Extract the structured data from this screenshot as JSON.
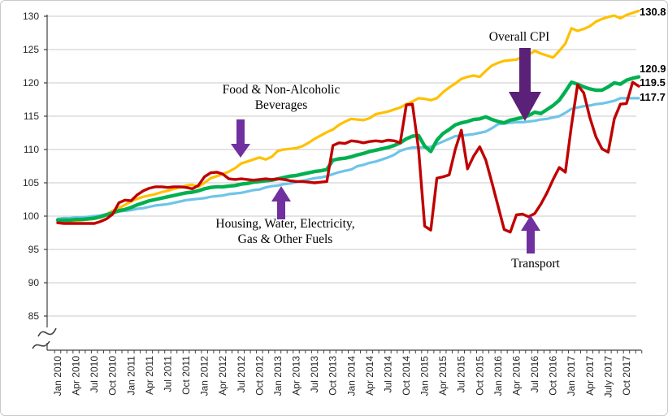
{
  "chart_data": {
    "type": "line",
    "title": "",
    "x": {
      "start": "Jan 2010",
      "end": "Dec 2017",
      "frequency": "monthly",
      "tick_labels": [
        "Jan 2010",
        "Apr 2010",
        "Jul 2010",
        "Oct 2010",
        "Jan 2011",
        "Apr 2011",
        "Jul 2011",
        "Oct 2011",
        "Jan 2012",
        "Apr 2012",
        "Jul 2012",
        "Oct 2012",
        "Jan 2013",
        "Apr 2013",
        "Jul 2013",
        "Oct 2013",
        "Jan 2014",
        "Apr 2014",
        "Jul 2014",
        "Oct 2014",
        "Jan 2015",
        "Apr 2015",
        "Jul 2015",
        "Oct 2015",
        "Jan 2016",
        "Apr 2016",
        "Jul 2016",
        "Oct 2016",
        "Jan 2017",
        "Apr 2017",
        "July 2017",
        "Oct 2017"
      ]
    },
    "y": {
      "ticks": [
        85,
        90,
        95,
        100,
        105,
        110,
        115,
        120,
        125,
        130
      ],
      "axis_break_below": 85
    },
    "grid": "horizontal",
    "legend": "none-annotated-arrows",
    "colors": {
      "grid": "#c9c9c9",
      "axis": "#404040",
      "arrow_large": "#5B2077",
      "arrow_small": "#7030A0"
    },
    "series": [
      {
        "name": "Food & Non-Alcoholic Beverages",
        "color": "#FFC000",
        "end_label": "130.8",
        "values": [
          99.3,
          99.3,
          99.2,
          99.3,
          99.4,
          99.5,
          99.6,
          99.8,
          100.3,
          100.8,
          101.2,
          101.7,
          102.2,
          102.6,
          102.9,
          103.1,
          103.3,
          103.6,
          103.8,
          104.1,
          104.3,
          104.6,
          104.7,
          104.4,
          105.0,
          105.7,
          106.0,
          106.3,
          106.7,
          107.2,
          107.9,
          108.2,
          108.5,
          108.8,
          108.5,
          108.9,
          109.8,
          110.0,
          110.1,
          110.2,
          110.5,
          111.0,
          111.6,
          112.1,
          112.6,
          113.0,
          113.7,
          114.2,
          114.6,
          114.5,
          114.4,
          114.7,
          115.3,
          115.5,
          115.7,
          116.0,
          116.3,
          116.8,
          117.2,
          117.7,
          117.6,
          117.4,
          117.7,
          118.6,
          119.3,
          119.9,
          120.6,
          120.9,
          121.1,
          120.9,
          121.8,
          122.6,
          123.0,
          123.3,
          123.4,
          123.5,
          123.9,
          124.2,
          124.8,
          124.4,
          124.1,
          123.8,
          124.8,
          125.9,
          128.2,
          127.8,
          128.1,
          128.5,
          129.2,
          129.6,
          129.9,
          130.1,
          129.7,
          130.2,
          130.5,
          130.8
        ]
      },
      {
        "name": "Overall CPI",
        "color": "#00B050",
        "end_label": "120.9",
        "values": [
          99.4,
          99.4,
          99.4,
          99.5,
          99.5,
          99.6,
          99.7,
          99.9,
          100.2,
          100.5,
          100.8,
          101.0,
          101.3,
          101.7,
          102.0,
          102.3,
          102.5,
          102.7,
          102.9,
          103.1,
          103.3,
          103.5,
          103.6,
          103.8,
          104.1,
          104.3,
          104.4,
          104.4,
          104.5,
          104.6,
          104.8,
          104.9,
          105.1,
          105.2,
          105.3,
          105.4,
          105.6,
          105.8,
          106.0,
          106.1,
          106.3,
          106.5,
          106.7,
          106.8,
          107.0,
          108.4,
          108.6,
          108.7,
          108.9,
          109.2,
          109.4,
          109.7,
          109.9,
          110.1,
          110.3,
          110.6,
          111.0,
          111.6,
          112.0,
          112.1,
          110.5,
          109.7,
          111.4,
          112.4,
          113.0,
          113.7,
          114.0,
          114.2,
          114.5,
          114.6,
          114.9,
          114.5,
          114.2,
          114.0,
          114.4,
          114.6,
          114.8,
          115.1,
          115.6,
          115.4,
          116.0,
          116.6,
          117.4,
          118.7,
          120.1,
          119.8,
          119.4,
          119.1,
          118.9,
          118.9,
          119.4,
          120.0,
          119.8,
          120.4,
          120.7,
          120.9
        ]
      },
      {
        "name": "Transport",
        "color": "#C00000",
        "end_label": "119.5",
        "values": [
          99.0,
          98.9,
          98.9,
          98.9,
          98.9,
          98.9,
          98.9,
          99.2,
          99.6,
          100.3,
          102.0,
          102.4,
          102.3,
          103.2,
          103.8,
          104.2,
          104.4,
          104.4,
          104.3,
          104.4,
          104.4,
          104.3,
          104.1,
          104.6,
          105.9,
          106.5,
          106.6,
          106.3,
          105.6,
          105.5,
          105.6,
          105.5,
          105.4,
          105.5,
          105.6,
          105.5,
          105.6,
          105.5,
          105.3,
          105.2,
          105.2,
          105.1,
          105.0,
          105.1,
          105.2,
          110.6,
          111.0,
          110.9,
          111.3,
          111.2,
          111.0,
          111.2,
          111.3,
          111.2,
          111.4,
          111.3,
          111.0,
          116.7,
          116.8,
          110.0,
          98.5,
          97.9,
          105.7,
          105.9,
          106.2,
          110.0,
          112.9,
          107.1,
          109.0,
          110.4,
          108.4,
          105.0,
          101.5,
          98.0,
          97.6,
          100.2,
          100.3,
          99.9,
          100.4,
          101.8,
          103.5,
          105.5,
          107.3,
          106.6,
          113.6,
          119.7,
          118.5,
          114.8,
          111.9,
          110.1,
          109.6,
          114.6,
          116.8,
          116.9,
          120.1,
          119.5
        ]
      },
      {
        "name": "Housing, Water, Electricity, Gas & Other Fuels",
        "color": "#6FC4E8",
        "end_label": "117.7",
        "values": [
          99.6,
          99.7,
          99.7,
          99.8,
          99.8,
          99.9,
          100.0,
          100.1,
          100.3,
          100.5,
          100.7,
          100.8,
          100.9,
          101.1,
          101.2,
          101.4,
          101.6,
          101.7,
          101.8,
          102.0,
          102.2,
          102.4,
          102.5,
          102.6,
          102.7,
          102.9,
          103.0,
          103.1,
          103.3,
          103.4,
          103.5,
          103.7,
          103.9,
          104.0,
          104.3,
          104.5,
          104.6,
          104.8,
          104.9,
          105.1,
          105.3,
          105.5,
          105.7,
          105.8,
          106.0,
          106.3,
          106.6,
          106.8,
          107.0,
          107.5,
          107.7,
          108.0,
          108.2,
          108.5,
          108.8,
          109.2,
          109.8,
          110.1,
          110.3,
          110.3,
          110.3,
          110.4,
          110.8,
          111.2,
          111.6,
          112.0,
          112.1,
          112.2,
          112.3,
          112.5,
          112.7,
          113.2,
          113.8,
          113.9,
          114.0,
          114.1,
          114.1,
          114.2,
          114.3,
          114.5,
          114.6,
          114.8,
          115.0,
          115.5,
          116.1,
          116.3,
          116.5,
          116.6,
          116.8,
          116.9,
          117.1,
          117.3,
          117.7,
          117.7,
          117.7,
          117.7
        ]
      }
    ]
  },
  "annotations": {
    "overall": {
      "text": "Overall CPI"
    },
    "food": {
      "text": "Food & Non-Alcoholic\nBeverages"
    },
    "housing": {
      "text": "Housing, Water, Electricity,\nGas & Other Fuels"
    },
    "transport": {
      "text": "Transport"
    }
  }
}
